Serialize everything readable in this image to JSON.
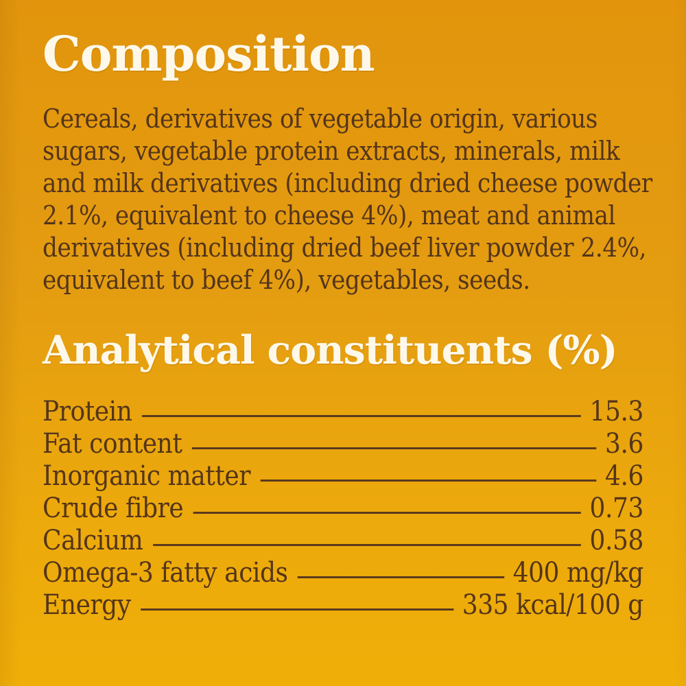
{
  "page": {
    "background_top_color": "#e2950c",
    "background_bottom_color": "#f0af08",
    "heading_color": "#fdf8ea",
    "body_text_color": "#54351a"
  },
  "composition": {
    "title": "Composition",
    "body_lines": [
      "Cereals, derivatives of vegetable origin, various",
      "sugars, vegetable protein extracts, minerals, milk",
      "and milk derivatives (including dried cheese powder",
      "2.1%, equivalent to cheese 4%), meat and animal",
      "derivatives (including dried beef liver powder 2.4%,",
      "equivalent to beef 4%), vegetables, seeds."
    ]
  },
  "analytical": {
    "title": "Analytical constituents (%)",
    "rows": [
      {
        "label": "Protein",
        "value": "15.3"
      },
      {
        "label": "Fat content",
        "value": "3.6"
      },
      {
        "label": "Inorganic matter",
        "value": "4.6"
      },
      {
        "label": "Crude fibre",
        "value": "0.73"
      },
      {
        "label": "Calcium",
        "value": "0.58"
      },
      {
        "label": "Omega-3 fatty acids",
        "value": "400 mg/kg"
      },
      {
        "label": "Energy",
        "value": "335 kcal/100 g"
      }
    ]
  }
}
